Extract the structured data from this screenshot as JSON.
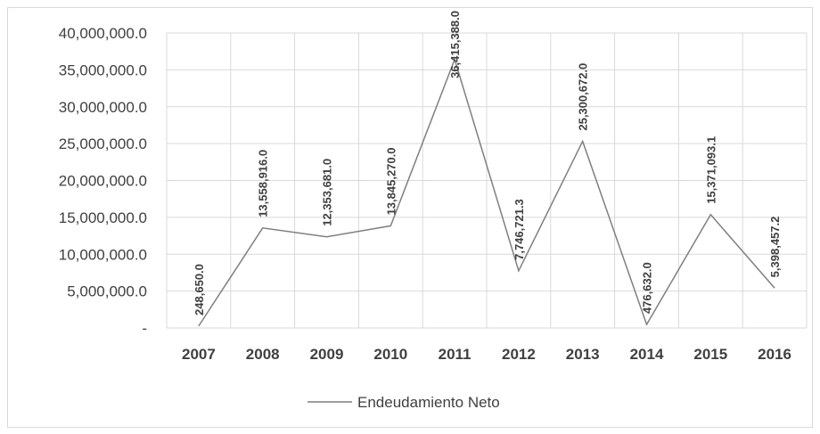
{
  "chart_data": {
    "type": "line",
    "categories": [
      "2007",
      "2008",
      "2009",
      "2010",
      "2011",
      "2012",
      "2013",
      "2014",
      "2015",
      "2016"
    ],
    "series": [
      {
        "name": "Endeudamiento Neto",
        "color": "#7f7f7f",
        "values": [
          248650.0,
          13558916.0,
          12353681.0,
          13845270.0,
          36415388.0,
          7746721.3,
          25300672.0,
          476632.0,
          15371093.1,
          5398457.2
        ],
        "value_labels": [
          "248,650.0",
          "13,558,916.0",
          "12,353,681.0",
          "13,845,270.0",
          "36,415,388.0",
          "7,746,721.3",
          "25,300,672.0",
          "476,632.0",
          "15,371,093.1",
          "5,398,457.2"
        ]
      }
    ],
    "ylim": [
      0,
      40000000
    ],
    "yticks": [
      {
        "value": 0,
        "label": "-"
      },
      {
        "value": 5000000,
        "label": "5,000,000.0"
      },
      {
        "value": 10000000,
        "label": "10,000,000.0"
      },
      {
        "value": 15000000,
        "label": "15,000,000.0"
      },
      {
        "value": 20000000,
        "label": "20,000,000.0"
      },
      {
        "value": 25000000,
        "label": "25,000,000.0"
      },
      {
        "value": 30000000,
        "label": "30,000,000.0"
      },
      {
        "value": 35000000,
        "label": "35,000,000.0"
      },
      {
        "value": 40000000,
        "label": "40,000,000.0"
      }
    ],
    "grid": true,
    "legend": "bottom"
  }
}
